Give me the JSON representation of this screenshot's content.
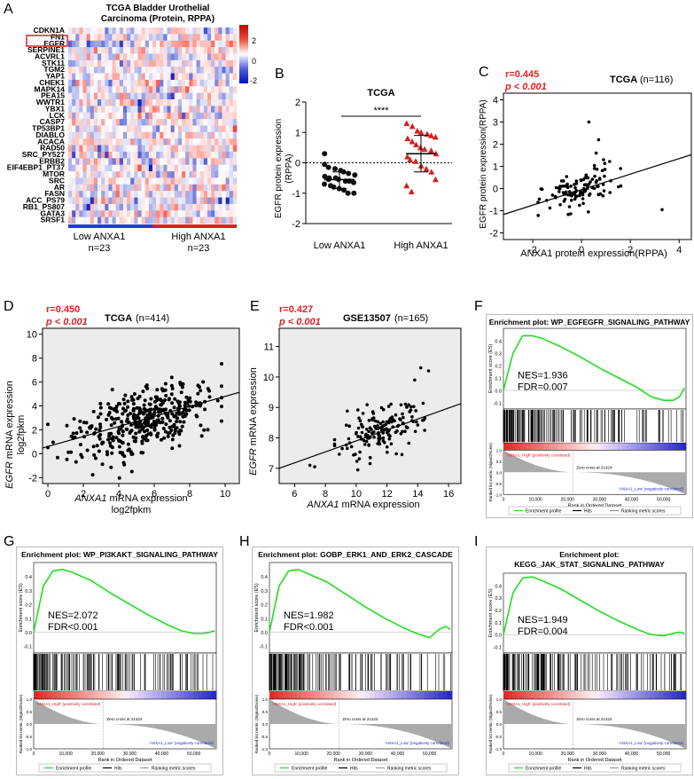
{
  "panels": {
    "A": {
      "letter": "A",
      "title_line1": "TCGA Bladder Urothelial",
      "title_line2": "Carcinoma (Protein, RPPA)",
      "genes": [
        "CDKN1A",
        "FN1",
        "EGFR",
        "SERPINE1",
        "ACVRL1",
        "STK11",
        "TGM2",
        "YAP1",
        "CHEK1",
        "MAPK14",
        "PEA15",
        "WWTR1",
        "YBX1",
        "LCK",
        "CASP7",
        "TP53BP1",
        "DIABLO",
        "ACACA",
        "RAD50",
        "SRC_PY527",
        "ERBB2",
        "EIF4EBP1_PT37",
        "MTOR",
        "SRC",
        "AR",
        "FASN",
        "ACC_PS79",
        "RB1_PS807",
        "GATA3",
        "SRSF1"
      ],
      "highlight_gene": "EGFR",
      "colorbar_ticks": [
        "2",
        "0",
        "-2"
      ],
      "groups": [
        {
          "label": "Low ANXA1",
          "n": "n=23",
          "color": "#1f3fd6"
        },
        {
          "label": "High ANXA1",
          "n": "n=23",
          "color": "#e02020"
        }
      ]
    },
    "B": {
      "letter": "B",
      "title": "TCGA",
      "ylabel_line1": "EGFR protein expression",
      "ylabel_line2": "(RPPA)",
      "yticks": [
        "2",
        "1",
        "0",
        "-1",
        "-2"
      ],
      "categories": [
        "Low ANXA1",
        "High ANXA1"
      ],
      "significance": "****"
    },
    "C": {
      "letter": "C",
      "r": "r=0.445",
      "p": "p < 0.001",
      "title": "TCGA",
      "n": "(n=116)",
      "ylabel": "EGFR protein expression(RPPA)",
      "xlabel": "ANXA1 protein expression(RPPA)",
      "yticks": [
        "4",
        "3",
        "2",
        "1",
        "0",
        "-1",
        "-2"
      ],
      "xticks": [
        "-2",
        "0",
        "2",
        "4"
      ]
    },
    "D": {
      "letter": "D",
      "r": "r=0.450",
      "p": "p < 0.001",
      "title": "TCGA",
      "n": "(n=414)",
      "ylabel_italic": "EGFR",
      "ylabel_rest": " mRNA expression",
      "ylabel2": "log2fpkm",
      "xlabel_italic": "ANXA1",
      "xlabel_rest": " mRNA expression",
      "xlabel2": "log2fpkm",
      "yticks": [
        "10",
        "8",
        "6",
        "4",
        "2",
        "0",
        "-2"
      ],
      "xticks": [
        "0",
        "2",
        "4",
        "6",
        "8",
        "10"
      ]
    },
    "E": {
      "letter": "E",
      "r": "r=0.427",
      "p": "p < 0.001",
      "title": "GSE13507",
      "n": "(n=165)",
      "ylabel_italic": "EGFR",
      "ylabel_rest": " mRNA expression",
      "xlabel_italic": "ANXA1",
      "xlabel_rest": " mRNA expression",
      "yticks": [
        "11",
        "10",
        "9",
        "8",
        "7"
      ],
      "xticks": [
        "6",
        "8",
        "10",
        "12",
        "14",
        "16"
      ]
    }
  },
  "gsea": [
    {
      "letter": "F",
      "title_line1": "Enrichment plot: WP_EGFEGFR_SIGNALING_PATHWAY",
      "title_line2": "",
      "nes": "NES=1.936",
      "fdr": "FDR=0.007"
    },
    {
      "letter": "G",
      "title_line1": "Enrichment plot: WP_PI3KAKT_SIGNALING_PATHWAY",
      "title_line2": "",
      "nes": "NES=2.072",
      "fdr": "FDR<0.001"
    },
    {
      "letter": "H",
      "title_line1": "Enrichment plot: GOBP_ERK1_AND_ERK2_CASCADE",
      "title_line2": "",
      "nes": "NES=1.982",
      "fdr": "FDR<0.001"
    },
    {
      "letter": "I",
      "title_line1": "Enrichment plot:",
      "title_line2": "KEGG_JAK_STAT_SIGNALING_PATHWAY",
      "nes": "NES=1.949",
      "fdr": "FDR=0.004"
    }
  ],
  "gsea_common": {
    "es_label": "Enrichment score (ES)",
    "metric_label": "Ranked list metric (Signal2Noise)",
    "es_ticks": [
      "0.4",
      "0.3",
      "0.2",
      "0.1",
      "0.0",
      "-0.1"
    ],
    "metric_ticks": [
      "1.0",
      "0.5",
      "0.0",
      "-0.5",
      "-1.0"
    ],
    "zero_cross": "Zero cross at 21424",
    "high_label": "'ANXA1_High' (positively correlated)",
    "low_label": "'ANXA1_Low' (negatively correlated)",
    "x_title": "Rank in Ordered Dataset",
    "xticks": [
      "0",
      "10,000",
      "20,000",
      "30,000",
      "40,000",
      "50,000"
    ],
    "legend": [
      "Enrichment profile",
      "Hits",
      "Ranking metric scores"
    ]
  },
  "chart_data": [
    {
      "type": "heatmap",
      "title": "TCGA Bladder Urothelial Carcinoma (Protein, RPPA)",
      "rows": 30,
      "columns": 46,
      "value_range": [
        -2.5,
        2.5
      ],
      "groups": [
        "Low ANXA1 n=23",
        "High ANXA1 n=23"
      ]
    },
    {
      "type": "scatter",
      "title": "TCGA",
      "xlabel": "",
      "ylabel": "EGFR protein expression (RPPA)",
      "ylim": [
        -2,
        2
      ],
      "categories": [
        "Low ANXA1",
        "High ANXA1"
      ],
      "series": [
        {
          "name": "Low ANXA1",
          "mean": -0.55,
          "sd_low": -0.85,
          "sd_high": -0.3,
          "values": [
            -0.05,
            -0.15,
            -0.2,
            -0.25,
            -0.3,
            -0.35,
            -0.4,
            -0.45,
            -0.5,
            -0.5,
            -0.55,
            -0.6,
            -0.6,
            -0.65,
            -0.7,
            -0.75,
            -0.8,
            -0.85,
            -0.9,
            -1.0,
            -1.0,
            0.3,
            -0.55
          ]
        },
        {
          "name": "High ANXA1",
          "mean": 0.3,
          "sd_low": -0.3,
          "sd_high": 0.9,
          "values": [
            1.3,
            1.2,
            1.05,
            1.0,
            0.95,
            0.9,
            0.85,
            0.8,
            0.7,
            0.6,
            0.5,
            0.45,
            0.4,
            0.3,
            0.2,
            0.1,
            0.05,
            -0.1,
            -0.2,
            -0.3,
            -0.55,
            -0.75,
            -0.95
          ]
        }
      ],
      "significance": "****"
    },
    {
      "type": "scatter",
      "title": "TCGA (n=116)",
      "xlabel": "ANXA1 protein expression(RPPA)",
      "ylabel": "EGFR protein expression(RPPA)",
      "xlim": [
        -3.2,
        4.5
      ],
      "ylim": [
        -2.3,
        4.3
      ],
      "r": 0.445,
      "p": "<0.001",
      "n": 116,
      "fit": {
        "slope": 0.35,
        "intercept": -0.05
      }
    },
    {
      "type": "scatter",
      "title": "TCGA (n=414)",
      "xlabel": "ANXA1 mRNA expression log2fpkm",
      "ylabel": "EGFR mRNA expression log2fpkm",
      "xlim": [
        -0.3,
        10.8
      ],
      "ylim": [
        -2.5,
        10.5
      ],
      "r": 0.45,
      "p": "<0.001",
      "n": 414,
      "fit": {
        "slope": 0.42,
        "intercept": 0.6
      }
    },
    {
      "type": "scatter",
      "title": "GSE13507 (n=165)",
      "xlabel": "ANXA1 mRNA expression",
      "ylabel": "EGFR mRNA expression",
      "xlim": [
        5,
        16.8
      ],
      "ylim": [
        6.5,
        11.6
      ],
      "r": 0.427,
      "p": "<0.001",
      "n": 165,
      "fit": {
        "slope": 0.18,
        "intercept": 6.1
      }
    },
    {
      "type": "line",
      "title": "GSEA enrichment curves",
      "xlabel": "Rank in Ordered Dataset",
      "ylabel": "Enrichment score (ES)",
      "xlim": [
        0,
        57000
      ],
      "ylim": [
        -0.15,
        0.5
      ],
      "series": [
        {
          "name": "WP_EGFEGFR_SIGNALING_PATHWAY",
          "x": [
            0,
            3000,
            6000,
            9000,
            12000,
            18000,
            24000,
            30000,
            36000,
            42000,
            46000,
            50000,
            53000,
            55000,
            56500
          ],
          "values": [
            0,
            0.3,
            0.44,
            0.44,
            0.42,
            0.35,
            0.27,
            0.18,
            0.1,
            0.02,
            -0.05,
            -0.08,
            -0.08,
            -0.05,
            0.02
          ]
        },
        {
          "name": "WP_PI3KAKT_SIGNALING_PATHWAY",
          "x": [
            0,
            3000,
            6000,
            9000,
            12000,
            18000,
            24000,
            30000,
            36000,
            42000,
            46000,
            50000,
            53000,
            55000,
            56500
          ],
          "values": [
            0,
            0.33,
            0.44,
            0.45,
            0.43,
            0.37,
            0.28,
            0.2,
            0.12,
            0.05,
            0.01,
            -0.01,
            -0.01,
            0.0,
            0.01
          ]
        },
        {
          "name": "GOBP_ERK1_AND_ERK2_CASCADE",
          "x": [
            0,
            3000,
            6000,
            9000,
            12000,
            18000,
            24000,
            30000,
            36000,
            42000,
            46000,
            50000,
            53000,
            55000,
            56500
          ],
          "values": [
            0,
            0.33,
            0.44,
            0.45,
            0.42,
            0.36,
            0.27,
            0.18,
            0.1,
            0.03,
            -0.01,
            -0.04,
            0.02,
            0.04,
            0.02
          ]
        },
        {
          "name": "KEGG_JAK_STAT_SIGNALING_PATHWAY",
          "x": [
            0,
            3000,
            6000,
            9000,
            12000,
            18000,
            24000,
            30000,
            36000,
            42000,
            46000,
            50000,
            53000,
            55000,
            56500
          ],
          "values": [
            0,
            0.34,
            0.46,
            0.47,
            0.44,
            0.37,
            0.28,
            0.19,
            0.11,
            0.04,
            0.0,
            -0.01,
            0.01,
            0.02,
            0.01
          ]
        }
      ],
      "nes": [
        1.936,
        2.072,
        1.982,
        1.949
      ],
      "fdr": [
        "0.007",
        "<0.001",
        "<0.001",
        "0.004"
      ]
    }
  ]
}
